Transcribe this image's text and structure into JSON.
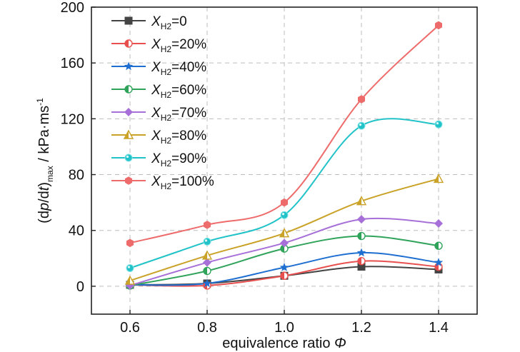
{
  "chart_data": {
    "type": "line",
    "xlabel": "equivalence ratio Φ",
    "ylabel": "(dp/dt)max / kPa·ms-1",
    "x": [
      0.6,
      0.8,
      1.0,
      1.2,
      1.4
    ],
    "xlim": [
      0.5,
      1.5
    ],
    "ylim": [
      -20,
      200
    ],
    "xticks": [
      "0.6",
      "0.8",
      "1.0",
      "1.2",
      "1.4"
    ],
    "yticks": [
      "0",
      "40",
      "80",
      "120",
      "160",
      "200"
    ],
    "grid": true,
    "legend_position": "top-left",
    "series": [
      {
        "name": "X_H2=0",
        "values": [
          1,
          2,
          7.5,
          14,
          12
        ],
        "color": "#444444",
        "marker": "square"
      },
      {
        "name": "X_H2=20%",
        "values": [
          1,
          0.5,
          7.5,
          18,
          14
        ],
        "color": "#e8504f",
        "marker": "half-circle"
      },
      {
        "name": "X_H2=40%",
        "values": [
          1,
          2,
          13.5,
          24,
          17
        ],
        "color": "#1f6fd1",
        "marker": "star"
      },
      {
        "name": "X_H2=60%",
        "values": [
          0.5,
          11,
          27,
          36,
          29
        ],
        "color": "#2fa35a",
        "marker": "half-circle"
      },
      {
        "name": "X_H2=70%",
        "values": [
          0.5,
          17,
          31,
          48,
          45
        ],
        "color": "#a770d8",
        "marker": "diamond"
      },
      {
        "name": "X_H2=80%",
        "values": [
          4,
          22,
          38,
          61,
          77
        ],
        "color": "#c9a227",
        "marker": "half-triangle"
      },
      {
        "name": "X_H2=90%",
        "values": [
          13,
          32,
          51,
          115,
          116
        ],
        "color": "#22c3c8",
        "marker": "circle"
      },
      {
        "name": "X_H2=100%",
        "values": [
          31,
          44,
          60,
          134,
          187
        ],
        "color": "#ee6b6b",
        "marker": "hexagon"
      }
    ]
  }
}
